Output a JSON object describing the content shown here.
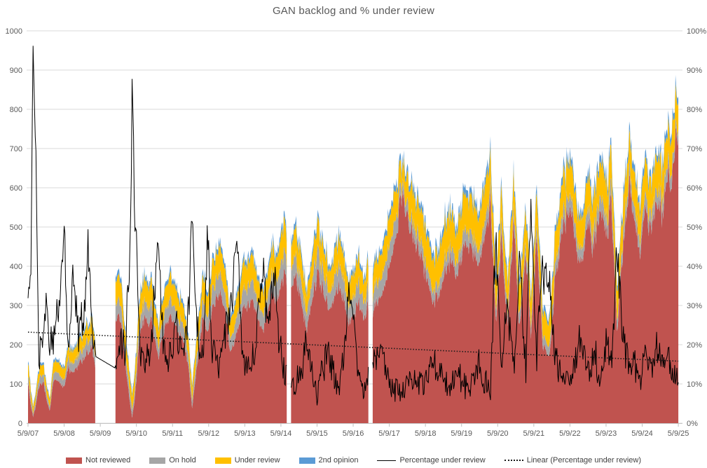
{
  "title": "GAN backlog and % under review",
  "legend": {
    "items": [
      {
        "label": "Not reviewed",
        "swatch": "area",
        "color": "#C0534F"
      },
      {
        "label": "On hold",
        "swatch": "area",
        "color": "#A6A6A6"
      },
      {
        "label": "Under review",
        "swatch": "area",
        "color": "#FFC000"
      },
      {
        "label": "2nd opinion",
        "swatch": "area",
        "color": "#5B9BD5"
      },
      {
        "label": "Percentage under review",
        "swatch": "line",
        "color": "#000000"
      },
      {
        "label": "Linear (Percentage under review)",
        "swatch": "dotted",
        "color": "#1a1a1a"
      }
    ]
  },
  "chart_data": {
    "type": "area",
    "subtype": "stacked-area-with-line",
    "title": "GAN backlog and % under review",
    "x_unit": "years since 5/9/07, weekly data",
    "x_tick_labels": [
      "5/9/07",
      "5/9/08",
      "5/9/09",
      "5/9/10",
      "5/9/11",
      "5/9/12",
      "5/9/13",
      "5/9/14",
      "5/9/15",
      "5/9/16",
      "5/9/17",
      "5/9/18",
      "5/9/19",
      "5/9/20",
      "5/9/21",
      "5/9/22",
      "5/9/23",
      "5/9/24",
      "5/9/25"
    ],
    "left_axis": {
      "min": 0,
      "max": 1000,
      "step": 100
    },
    "right_axis": {
      "min": 0,
      "max": 100,
      "step": 10,
      "suffix": "%"
    },
    "grid": "horizontal-only",
    "gridline_color": "#D9D9D9",
    "axis_text_color": "#595959",
    "gaps": [
      [
        1.87,
        2.42
      ],
      [
        7.17,
        7.27
      ],
      [
        9.42,
        9.53
      ]
    ],
    "anchors_t": [
      0,
      0.08,
      0.14,
      0.2,
      0.3,
      0.42,
      0.52,
      0.6,
      0.72,
      0.85,
      1,
      1.12,
      1.25,
      1.4,
      1.55,
      1.66,
      1.78,
      1.87,
      2.42,
      2.55,
      2.7,
      2.82,
      2.88,
      2.96,
      3.1,
      3.25,
      3.42,
      3.6,
      3.75,
      3.95,
      4.1,
      4.3,
      4.45,
      4.54,
      4.65,
      4.85,
      4.97,
      5.1,
      5.28,
      5.45,
      5.6,
      5.78,
      5.95,
      6.15,
      6.3,
      6.5,
      6.65,
      6.8,
      6.95,
      7.08,
      7.17,
      7.27,
      7.42,
      7.58,
      7.72,
      7.88,
      8,
      8.18,
      8.32,
      8.5,
      8.62,
      8.78,
      8.88,
      9,
      9.15,
      9.3,
      9.42,
      9.53,
      9.7,
      9.88,
      10.05,
      10.2,
      10.33,
      10.5,
      10.68,
      10.85,
      11.05,
      11.2,
      11.4,
      11.55,
      11.7,
      11.85,
      12,
      12.15,
      12.3,
      12.45,
      12.6,
      12.8,
      12.95,
      13.1,
      13.28,
      13.45,
      13.6,
      13.78,
      13.92,
      14.08,
      14.25,
      14.45,
      14.6,
      14.8,
      15,
      15.15,
      15.3,
      15.5,
      15.65,
      15.85,
      16,
      16.15,
      16.3,
      16.45,
      16.65,
      16.8,
      16.95,
      17.1,
      17.25,
      17.4,
      17.55,
      17.7,
      17.82,
      17.92,
      18
    ],
    "series": [
      {
        "name": "Not reviewed",
        "color": "#C0534F",
        "values": [
          105,
          45,
          16,
          38,
          92,
          108,
          55,
          32,
          115,
          105,
          92,
          140,
          128,
          150,
          165,
          180,
          195,
          135,
          255,
          270,
          150,
          55,
          14,
          65,
          235,
          275,
          255,
          165,
          230,
          275,
          245,
          210,
          140,
          38,
          125,
          275,
          235,
          295,
          335,
          300,
          170,
          235,
          285,
          315,
          275,
          235,
          295,
          330,
          315,
          385,
          365,
          345,
          375,
          295,
          235,
          315,
          385,
          335,
          285,
          325,
          355,
          295,
          255,
          275,
          315,
          275,
          305,
          285,
          315,
          355,
          420,
          480,
          600,
          520,
          470,
          430,
          365,
          312,
          335,
          385,
          425,
          365,
          420,
          480,
          440,
          395,
          450,
          560,
          245,
          465,
          250,
          520,
          235,
          440,
          225,
          460,
          195,
          175,
          380,
          490,
          540,
          460,
          395,
          520,
          440,
          545,
          480,
          560,
          235,
          430,
          610,
          500,
          445,
          545,
          480,
          560,
          525,
          650,
          600,
          745,
          735
        ]
      },
      {
        "name": "On hold",
        "color": "#A6A6A6",
        "values": [
          22,
          14,
          8,
          12,
          18,
          20,
          14,
          10,
          20,
          20,
          18,
          24,
          22,
          24,
          26,
          28,
          30,
          24,
          40,
          42,
          30,
          24,
          18,
          22,
          38,
          42,
          40,
          30,
          38,
          42,
          40,
          35,
          28,
          20,
          28,
          44,
          40,
          46,
          50,
          46,
          32,
          38,
          44,
          48,
          42,
          38,
          44,
          50,
          48,
          54,
          52,
          50,
          54,
          46,
          40,
          48,
          55,
          50,
          44,
          48,
          52,
          46,
          42,
          44,
          48,
          44,
          46,
          44,
          48,
          50,
          52,
          50,
          24,
          30,
          34,
          32,
          30,
          28,
          30,
          32,
          34,
          32,
          35,
          38,
          36,
          34,
          36,
          30,
          30,
          34,
          28,
          32,
          28,
          32,
          28,
          33,
          26,
          25,
          32,
          35,
          36,
          34,
          32,
          36,
          34,
          38,
          36,
          38,
          28,
          34,
          30,
          34,
          34,
          36,
          34,
          36,
          36,
          32,
          34,
          24,
          22
        ]
      },
      {
        "name": "Under review",
        "color": "#FFC000",
        "values": [
          32,
          22,
          14,
          18,
          26,
          28,
          20,
          16,
          28,
          28,
          28,
          32,
          32,
          34,
          36,
          38,
          40,
          32,
          55,
          57,
          45,
          40,
          34,
          40,
          54,
          58,
          56,
          45,
          52,
          58,
          55,
          50,
          42,
          34,
          45,
          60,
          55,
          62,
          68,
          62,
          46,
          54,
          60,
          64,
          58,
          54,
          60,
          66,
          62,
          72,
          68,
          66,
          70,
          60,
          52,
          62,
          72,
          64,
          58,
          62,
          66,
          60,
          55,
          58,
          62,
          56,
          60,
          58,
          62,
          68,
          74,
          72,
          48,
          70,
          82,
          78,
          85,
          80,
          85,
          88,
          90,
          82,
          88,
          92,
          88,
          84,
          88,
          80,
          75,
          82,
          72,
          80,
          70,
          78,
          68,
          80,
          64,
          62,
          76,
          82,
          85,
          80,
          76,
          84,
          80,
          86,
          82,
          88,
          70,
          80,
          78,
          82,
          80,
          84,
          80,
          86,
          84,
          80,
          86,
          80,
          70
        ]
      },
      {
        "name": "2nd opinion",
        "color": "#5B9BD5",
        "values": [
          8,
          6,
          4,
          5,
          6,
          6,
          5,
          4,
          7,
          6,
          6,
          7,
          7,
          8,
          8,
          9,
          9,
          8,
          12,
          12,
          10,
          9,
          8,
          9,
          12,
          12,
          12,
          10,
          11,
          12,
          12,
          11,
          10,
          8,
          10,
          13,
          12,
          13,
          14,
          13,
          11,
          12,
          13,
          13,
          12,
          12,
          13,
          14,
          13,
          15,
          14,
          14,
          15,
          13,
          11,
          13,
          15,
          13,
          12,
          13,
          14,
          13,
          12,
          12,
          13,
          12,
          13,
          12,
          13,
          14,
          15,
          15,
          14,
          16,
          17,
          16,
          18,
          17,
          18,
          18,
          18,
          17,
          18,
          19,
          18,
          17,
          18,
          20,
          16,
          17,
          15,
          17,
          15,
          16,
          14,
          17,
          14,
          13,
          16,
          17,
          18,
          17,
          16,
          17,
          17,
          18,
          17,
          18,
          15,
          17,
          18,
          17,
          17,
          18,
          17,
          18,
          18,
          18,
          18,
          18,
          16
        ]
      }
    ],
    "line_series": {
      "name": "Percentage under review",
      "color": "#000000",
      "axis": "right",
      "values": [
        28,
        38,
        90,
        72,
        16,
        25,
        30,
        18,
        22,
        32,
        47,
        20,
        36,
        22,
        28,
        48,
        20,
        17,
        14,
        21,
        18,
        45,
        88,
        52,
        20,
        15,
        22,
        47,
        19,
        16,
        24,
        19,
        30,
        58,
        27,
        15,
        47,
        19,
        15,
        22,
        30,
        46,
        17,
        13,
        21,
        38,
        24,
        40,
        20,
        14,
        12,
        12,
        10,
        15,
        20,
        12,
        9,
        14,
        18,
        11,
        9,
        21,
        33,
        27,
        14,
        9,
        11,
        13,
        19,
        14,
        10,
        8,
        7,
        9,
        11,
        10,
        12,
        15,
        13,
        10,
        9,
        14,
        10,
        8,
        12,
        16,
        10,
        9,
        48,
        15,
        30,
        12,
        42,
        14,
        55,
        18,
        40,
        35,
        15,
        12,
        10,
        16,
        22,
        13,
        18,
        12,
        20,
        14,
        45,
        22,
        13,
        15,
        12,
        18,
        13,
        20,
        14,
        17,
        12,
        13,
        10
      ]
    },
    "trendline": {
      "name": "Linear (Percentage under review)",
      "color": "#1a1a1a",
      "axis": "right",
      "start_pct": 23.2,
      "end_pct": 15.8
    },
    "noise": {
      "seed": 3,
      "area_shared": 0.05,
      "bands": [
        0.04,
        0.15,
        0.12,
        0.2
      ],
      "pct_abs": 2.2,
      "pct_rel": 0.1
    },
    "legend_position": "bottom"
  }
}
